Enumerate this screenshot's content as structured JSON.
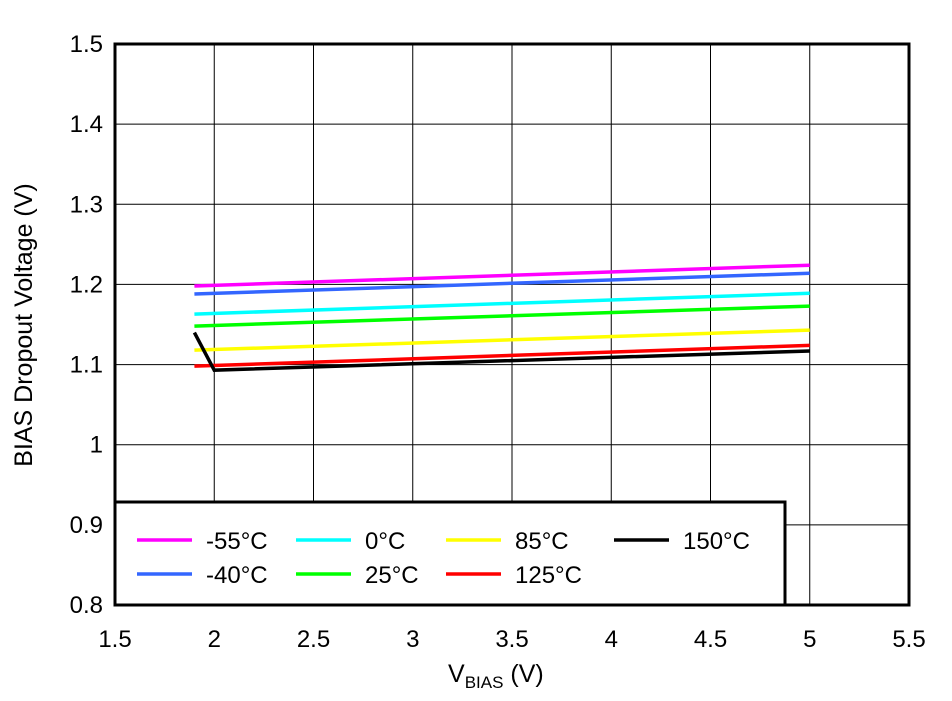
{
  "chart_data": {
    "type": "line",
    "title": "",
    "xlabel_main": "V",
    "xlabel_sub": "BIAS",
    "xlabel_unit": " (V)",
    "ylabel": "BIAS Dropout Voltage (V)",
    "xlim": [
      1.5,
      5.5
    ],
    "ylim": [
      0.8,
      1.5
    ],
    "xticks": [
      "1.5",
      "2",
      "2.5",
      "3",
      "3.5",
      "4",
      "4.5",
      "5",
      "5.5"
    ],
    "yticks": [
      "0.8",
      "0.9",
      "1",
      "1.1",
      "1.2",
      "1.3",
      "1.4",
      "1.5"
    ],
    "grid": true,
    "legend_position": "bottom-left",
    "series": [
      {
        "name": "-55°C",
        "color": "#ff00ff",
        "x": [
          1.9,
          5
        ],
        "y": [
          1.198,
          1.224
        ]
      },
      {
        "name": "-40°C",
        "color": "#3366ff",
        "x": [
          1.9,
          5
        ],
        "y": [
          1.188,
          1.214
        ]
      },
      {
        "name": "0°C",
        "color": "#00ffff",
        "x": [
          1.9,
          5
        ],
        "y": [
          1.163,
          1.189
        ]
      },
      {
        "name": "25°C",
        "color": "#00ff00",
        "x": [
          1.9,
          5
        ],
        "y": [
          1.148,
          1.173
        ]
      },
      {
        "name": "85°C",
        "color": "#ffff00",
        "x": [
          1.9,
          5
        ],
        "y": [
          1.118,
          1.143
        ]
      },
      {
        "name": "125°C",
        "color": "#ff0000",
        "x": [
          1.9,
          5
        ],
        "y": [
          1.098,
          1.124
        ]
      },
      {
        "name": "150°C",
        "color": "#000000",
        "x": [
          1.9,
          2.0,
          5
        ],
        "y": [
          1.14,
          1.093,
          1.117
        ]
      }
    ]
  }
}
